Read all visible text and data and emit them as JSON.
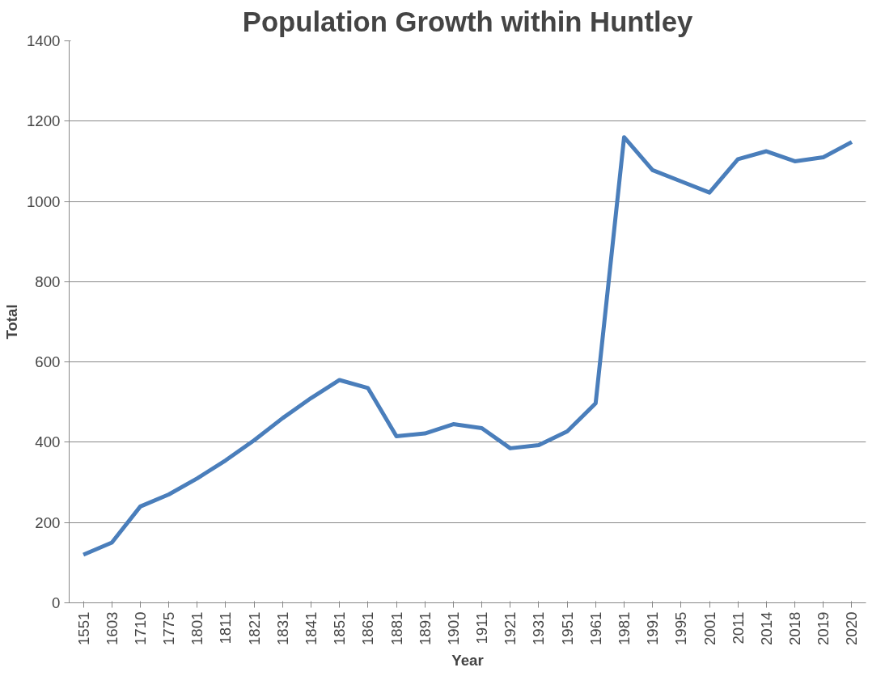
{
  "chart_data": {
    "type": "line",
    "title": "Population Growth within Huntley",
    "xlabel": "Year",
    "ylabel": "Total",
    "categories": [
      "1551",
      "1603",
      "1710",
      "1775",
      "1801",
      "1811",
      "1821",
      "1831",
      "1841",
      "1851",
      "1861",
      "1881",
      "1891",
      "1901",
      "1911",
      "1921",
      "1931",
      "1951",
      "1961",
      "1981",
      "1991",
      "1995",
      "2001",
      "2011",
      "2014",
      "2018",
      "2019",
      "2020"
    ],
    "series": [
      {
        "color": "#4a7ebb",
        "values": [
          120,
          150,
          240,
          270,
          310,
          355,
          405,
          460,
          510,
          555,
          535,
          415,
          422,
          445,
          435,
          385,
          393,
          427,
          497,
          1160,
          1078,
          1050,
          1022,
          1105,
          1125,
          1100,
          1110,
          1148
        ]
      }
    ],
    "ylim": [
      0,
      1400
    ],
    "yticks": [
      0,
      200,
      400,
      600,
      800,
      1000,
      1200,
      1400
    ],
    "grid": "y",
    "marker": "none",
    "line_style": "solid"
  }
}
